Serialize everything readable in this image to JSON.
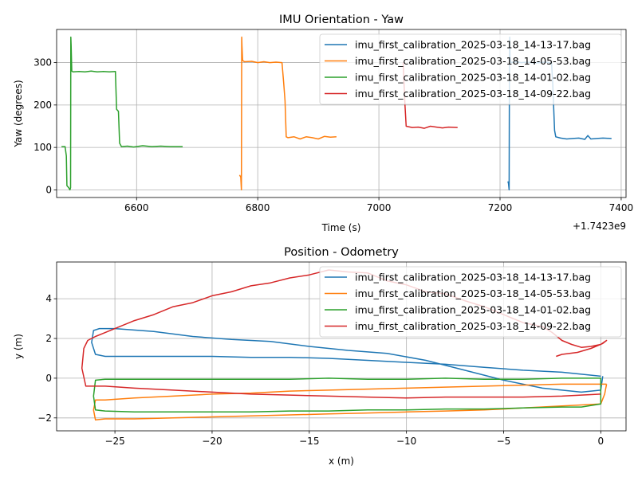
{
  "chart_data": [
    {
      "type": "line",
      "title": "IMU Orientation - Yaw",
      "xlabel": "Time (s)",
      "ylabel": "Yaw (degrees)",
      "x_offset_label": "+1.7423e9",
      "xlim": [
        6468,
        7408
      ],
      "ylim": [
        -18,
        378
      ],
      "xticks": [
        6600,
        6800,
        7000,
        7200,
        7400
      ],
      "yticks": [
        0,
        100,
        200,
        300
      ],
      "grid": true,
      "legend": "top-right",
      "series": [
        {
          "name": "imu_first_calibration_2025-03-18_14-13-17.bag",
          "color": "#1f77b4",
          "x": [
            7213,
            7214,
            7215,
            7215.5,
            7216,
            7216.5,
            7218,
            7225,
            7235,
            7245,
            7255,
            7265,
            7275,
            7285,
            7287,
            7290,
            7292,
            7300,
            7310,
            7320,
            7330,
            7340,
            7345,
            7350,
            7360,
            7370,
            7384
          ],
          "y": [
            20,
            15,
            0,
            300,
            360,
            310,
            300,
            302,
            300,
            301,
            299,
            300,
            301,
            299,
            250,
            140,
            125,
            122,
            120,
            121,
            122,
            119,
            128,
            120,
            121,
            122,
            121
          ]
        },
        {
          "name": "imu_first_calibration_2025-03-18_14-05-53.bag",
          "color": "#ff7f0e",
          "x": [
            6770,
            6772,
            6773,
            6773.5,
            6774,
            6775,
            6778,
            6790,
            6800,
            6810,
            6820,
            6830,
            6840,
            6843,
            6845,
            6847,
            6850,
            6860,
            6870,
            6880,
            6890,
            6900,
            6910,
            6920,
            6930
          ],
          "y": [
            35,
            30,
            0,
            360,
            340,
            305,
            302,
            303,
            300,
            302,
            300,
            301,
            300,
            250,
            210,
            125,
            123,
            125,
            120,
            125,
            123,
            120,
            126,
            124,
            125
          ]
        },
        {
          "name": "imu_first_calibration_2025-03-18_14-01-02.bag",
          "color": "#2ca02c",
          "x": [
            6476,
            6482,
            6484,
            6485,
            6488,
            6490,
            6491,
            6491.5,
            6492,
            6493,
            6495,
            6505,
            6515,
            6525,
            6535,
            6545,
            6555,
            6565,
            6567,
            6570,
            6572,
            6575,
            6585,
            6595,
            6610,
            6625,
            6640,
            6655,
            6676
          ],
          "y": [
            102,
            102,
            80,
            10,
            5,
            0,
            5,
            360,
            340,
            280,
            278,
            279,
            278,
            280,
            278,
            279,
            278,
            279,
            190,
            185,
            110,
            102,
            103,
            101,
            104,
            102,
            103,
            102,
            102
          ]
        },
        {
          "name": "imu_first_calibration_2025-03-18_14-09-22.bag",
          "color": "#d62728",
          "x": [
            7040,
            7043,
            7045,
            7055,
            7065,
            7075,
            7085,
            7095,
            7105,
            7115,
            7130
          ],
          "y": [
            300,
            200,
            150,
            147,
            148,
            145,
            150,
            148,
            146,
            148,
            147
          ]
        }
      ]
    },
    {
      "type": "line",
      "title": "Position - Odometry",
      "xlabel": "x (m)",
      "ylabel": "y (m)",
      "xlim": [
        -28,
        1.3
      ],
      "ylim": [
        -2.65,
        5.85
      ],
      "xticks": [
        -25,
        -20,
        -15,
        -10,
        -5,
        0
      ],
      "yticks": [
        -2,
        0,
        2,
        4
      ],
      "grid": true,
      "legend": "top-right",
      "series": [
        {
          "name": "imu_first_calibration_2025-03-18_14-13-17.bag",
          "color": "#1f77b4",
          "x": [
            0,
            -2,
            -4,
            -6,
            -8,
            -10,
            -12,
            -14,
            -16,
            -18,
            -20,
            -22,
            -24,
            -25.5,
            -26,
            -26.2,
            -26.1,
            -25.8,
            -25,
            -23,
            -21,
            -19,
            -17,
            -15,
            -13,
            -11,
            -9,
            -7,
            -5,
            -3,
            -1,
            0,
            0.1
          ],
          "y": [
            0.1,
            0.3,
            0.4,
            0.55,
            0.7,
            0.8,
            0.9,
            1.0,
            1.05,
            1.05,
            1.1,
            1.1,
            1.1,
            1.1,
            1.2,
            1.8,
            2.4,
            2.5,
            2.5,
            2.35,
            2.1,
            1.95,
            1.85,
            1.6,
            1.4,
            1.25,
            0.9,
            0.4,
            -0.1,
            -0.5,
            -0.7,
            -0.6,
            0.1
          ]
        },
        {
          "name": "imu_first_calibration_2025-03-18_14-05-53.bag",
          "color": "#ff7f0e",
          "x": [
            0.3,
            -2,
            -4,
            -6,
            -8,
            -10,
            -12,
            -14,
            -16,
            -18,
            -20,
            -22,
            -24,
            -25.5,
            -26,
            -26.1,
            -26,
            -25.5,
            -24,
            -22,
            -20,
            -18,
            -16,
            -14,
            -12,
            -10,
            -8,
            -6,
            -4,
            -2,
            0,
            0.2,
            0.3
          ],
          "y": [
            -0.3,
            -0.3,
            -0.35,
            -0.4,
            -0.45,
            -0.5,
            -0.55,
            -0.6,
            -0.65,
            -0.75,
            -0.8,
            -0.9,
            -1.0,
            -1.1,
            -1.1,
            -1.6,
            -2.1,
            -2.05,
            -2.05,
            -2.0,
            -1.95,
            -1.9,
            -1.85,
            -1.8,
            -1.75,
            -1.7,
            -1.65,
            -1.6,
            -1.5,
            -1.4,
            -1.3,
            -0.8,
            -0.3
          ]
        },
        {
          "name": "imu_first_calibration_2025-03-18_14-01-02.bag",
          "color": "#2ca02c",
          "x": [
            0,
            -2,
            -4,
            -6,
            -8,
            -10,
            -12,
            -14,
            -16,
            -18,
            -20,
            -22,
            -24,
            -25.5,
            -26,
            -26.1,
            -26,
            -25.5,
            -24,
            -22,
            -20,
            -18,
            -16,
            -14,
            -12,
            -10,
            -8,
            -6,
            -4,
            -2,
            -1,
            0,
            0
          ],
          "y": [
            0,
            0,
            -0.05,
            -0.05,
            0,
            -0.05,
            -0.05,
            0,
            -0.05,
            -0.05,
            -0.05,
            -0.05,
            -0.05,
            -0.05,
            -0.1,
            -0.9,
            -1.6,
            -1.65,
            -1.7,
            -1.7,
            -1.7,
            -1.7,
            -1.65,
            -1.65,
            -1.6,
            -1.6,
            -1.55,
            -1.55,
            -1.5,
            -1.45,
            -1.45,
            -1.3,
            0
          ]
        },
        {
          "name": "imu_first_calibration_2025-03-18_14-09-22.bag",
          "color": "#d62728",
          "x": [
            0,
            -2,
            -4,
            -6,
            -8,
            -10,
            -12,
            -14,
            -16,
            -18,
            -20,
            -22,
            -24,
            -25.5,
            -26.5,
            -26.7,
            -26.6,
            -26.4,
            -26,
            -25,
            -24,
            -23,
            -22,
            -21,
            -20,
            -19,
            -18,
            -17,
            -16,
            -15,
            -14,
            -13,
            -12,
            -11,
            -10,
            -9,
            -8,
            -7,
            -6,
            -5,
            -4,
            -3,
            -2.5,
            -2,
            -1.5,
            -1,
            -0.5,
            0,
            0.3,
            0.1,
            -0.5,
            -1.2,
            -2.0,
            -2.3
          ],
          "y": [
            -0.8,
            -0.9,
            -0.95,
            -0.95,
            -0.95,
            -1.0,
            -0.95,
            -0.9,
            -0.85,
            -0.8,
            -0.7,
            -0.6,
            -0.5,
            -0.4,
            -0.4,
            0.5,
            1.5,
            1.9,
            2.1,
            2.5,
            2.9,
            3.2,
            3.6,
            3.8,
            4.15,
            4.35,
            4.65,
            4.8,
            5.05,
            5.2,
            5.45,
            5.35,
            5.3,
            4.9,
            4.7,
            4.35,
            4.25,
            3.9,
            3.6,
            3.2,
            2.8,
            2.6,
            2.3,
            1.9,
            1.7,
            1.55,
            1.6,
            1.7,
            1.9,
            1.75,
            1.5,
            1.3,
            1.2,
            1.1
          ]
        }
      ]
    }
  ]
}
